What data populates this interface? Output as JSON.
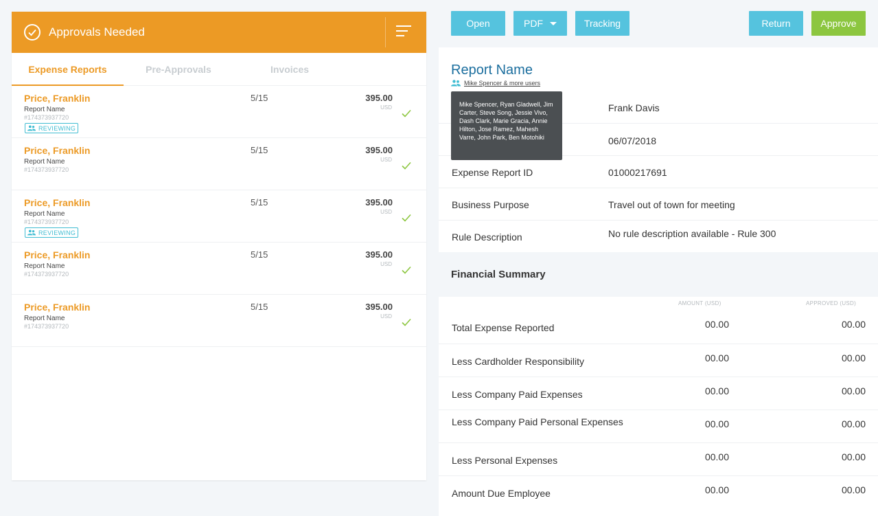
{
  "left_panel": {
    "title": "Approvals Needed",
    "tabs": [
      {
        "label": "Expense Reports",
        "active": true
      },
      {
        "label": "Pre-Approvals",
        "active": false
      },
      {
        "label": "Invoices",
        "active": false
      }
    ],
    "rows": [
      {
        "name": "Price, Franklin",
        "report": "Report Name",
        "id": "#174373937720",
        "badge": "REVIEWING",
        "date": "5/15",
        "amount": "395.00",
        "currency": "USD"
      },
      {
        "name": "Price, Franklin",
        "report": "Report Name",
        "id": "#174373937720",
        "badge": "",
        "date": "5/15",
        "amount": "395.00",
        "currency": "USD"
      },
      {
        "name": "Price, Franklin",
        "report": "Report Name",
        "id": "#174373937720",
        "badge": "REVIEWING",
        "date": "5/15",
        "amount": "395.00",
        "currency": "USD"
      },
      {
        "name": "Price, Franklin",
        "report": "Report Name",
        "id": "#174373937720",
        "badge": "",
        "date": "5/15",
        "amount": "395.00",
        "currency": "USD"
      },
      {
        "name": "Price, Franklin",
        "report": "Report Name",
        "id": "#174373937720",
        "badge": "",
        "date": "5/15",
        "amount": "395.00",
        "currency": "USD"
      }
    ]
  },
  "toolbar": {
    "open_label": "Open",
    "pdf_label": "PDF",
    "tracking_label": "Tracking",
    "return_label": "Return",
    "approve_label": "Approve"
  },
  "report": {
    "title": "Report Name",
    "users_link": "Mike Spencer & more users",
    "tooltip": "Mike Spencer, Ryan Gladwell, Jim Carter, Steve Song, Jessie Vivo, Dash Clark, Marie Gracia, Annie Hilton, Jose Ramez, Mahesh Varre, John Park, Ben Motohiki",
    "details": [
      {
        "label": "",
        "value": "Frank Davis"
      },
      {
        "label": "",
        "value": "06/07/2018"
      },
      {
        "label": "Expense Report ID",
        "value": "01000217691"
      },
      {
        "label": "Business Purpose",
        "value": "Travel out of town for meeting"
      },
      {
        "label": "Rule Description",
        "value": "No rule description available - Rule 300"
      }
    ]
  },
  "financial": {
    "title": "Financial Summary",
    "col_amount": "AMOUNT (USD)",
    "col_approved": "APPROVED (USD)",
    "rows": [
      {
        "label": "Total Expense Reported",
        "amount": "00.00",
        "approved": "00.00"
      },
      {
        "label": "Less Cardholder Responsibility",
        "amount": "00.00",
        "approved": "00.00"
      },
      {
        "label": "Less Company Paid Expenses",
        "amount": "00.00",
        "approved": "00.00"
      },
      {
        "label": "Less Company Paid Personal Expenses",
        "amount": "00.00",
        "approved": "00.00"
      },
      {
        "label": "Less Personal Expenses",
        "amount": "00.00",
        "approved": "00.00"
      },
      {
        "label": "Amount Due Employee",
        "amount": "00.00",
        "approved": "00.00"
      }
    ]
  },
  "colors": {
    "accent_orange": "#ec9a25",
    "button_blue": "#55c3de",
    "approve_green": "#8cc63f",
    "title_blue": "#1b6e9e",
    "badge_teal": "#3fbcd2"
  }
}
